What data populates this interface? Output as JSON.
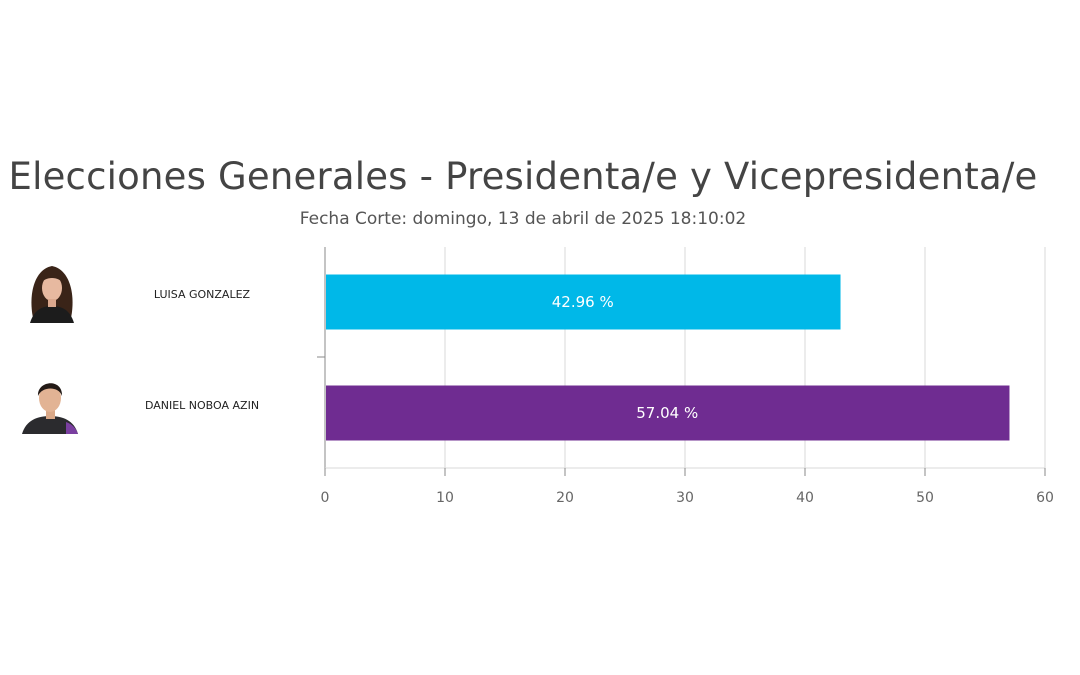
{
  "chart_data": {
    "type": "bar",
    "orientation": "horizontal",
    "title": "Elecciones Generales - Presidenta/e y Vicepresidenta/e",
    "subtitle": "Fecha Corte: domingo, 13 de abril de 2025 18:10:02",
    "categories": [
      "LUISA GONZALEZ",
      "DANIEL NOBOA AZIN"
    ],
    "values": [
      42.96,
      57.04
    ],
    "data_labels": [
      "42.96 %",
      "57.04 %"
    ],
    "colors": [
      "#00b8e8",
      "#6f2c91"
    ],
    "xlim": [
      0,
      60
    ],
    "xticks": [
      0,
      10,
      20,
      30,
      40,
      50,
      60
    ],
    "grid": true
  }
}
